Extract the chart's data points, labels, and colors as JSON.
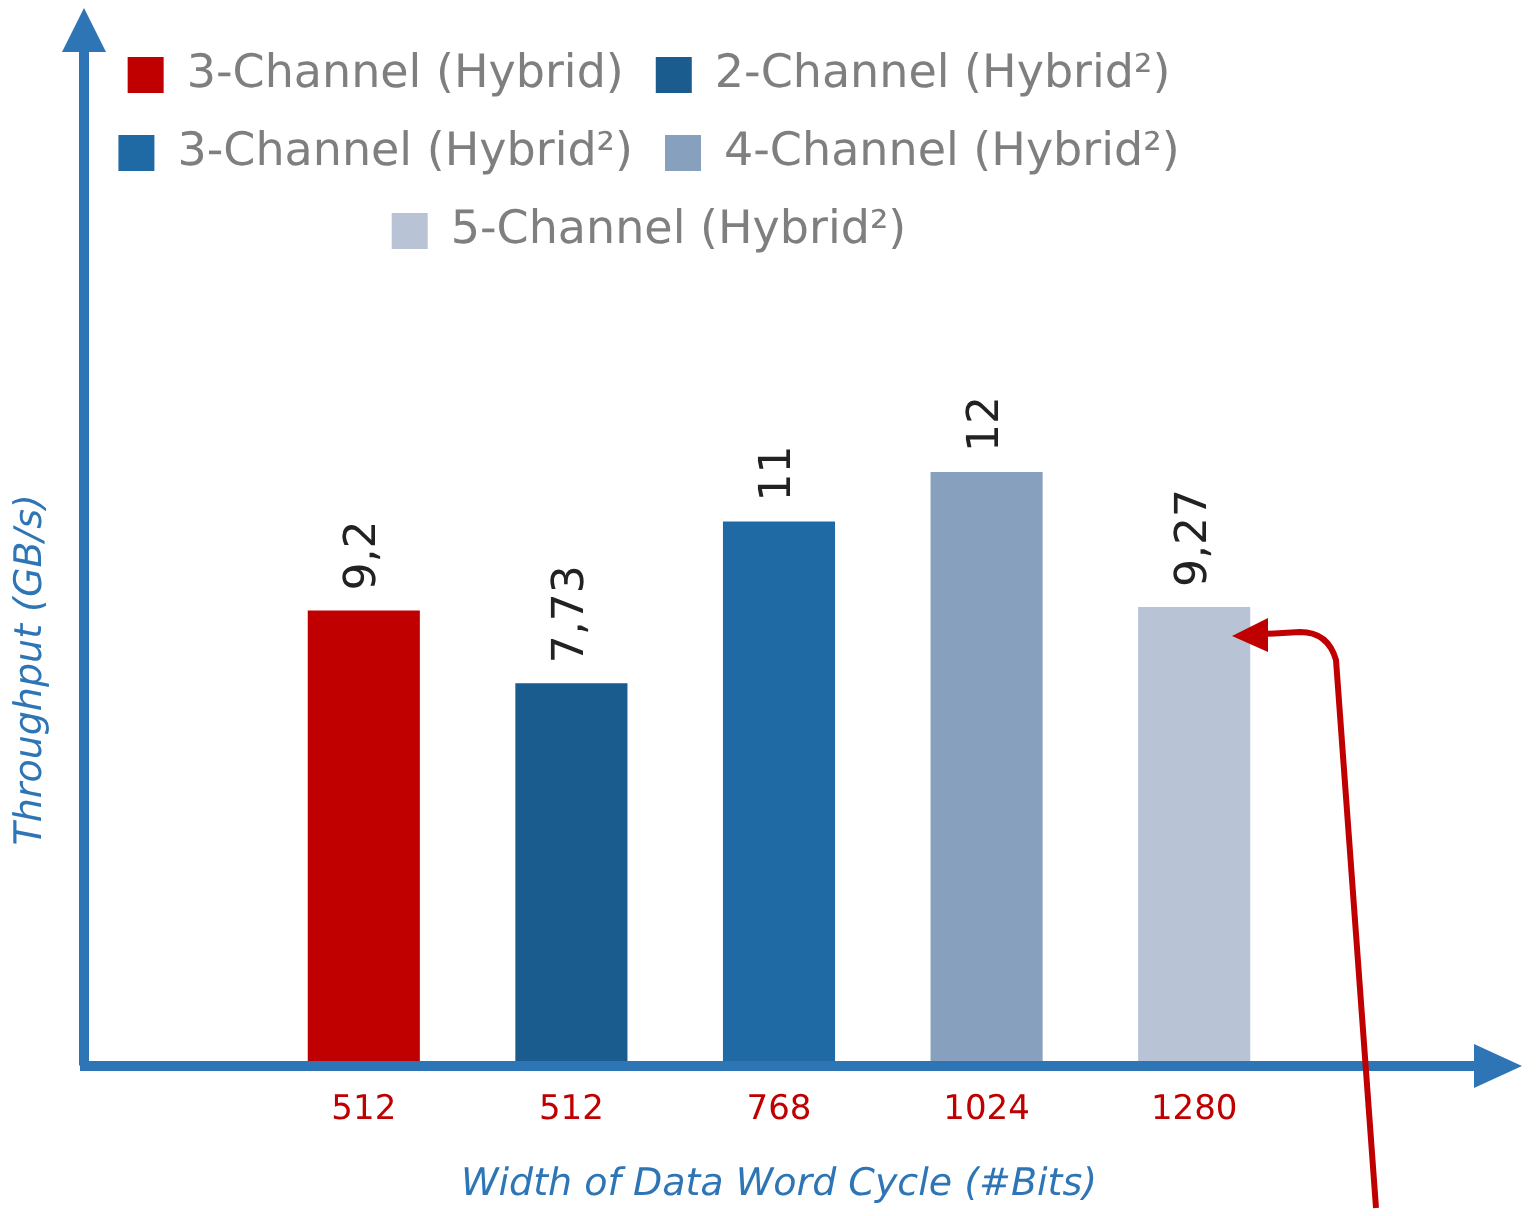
{
  "chart_data": {
    "type": "bar",
    "xlabel": "Width of Data Word Cycle (#Bits)",
    "ylabel": "Throughput (GB/s)",
    "categories": [
      "512",
      "512",
      "768",
      "1024",
      "1280"
    ],
    "series": [
      {
        "name": "3-Channel (Hybrid)",
        "color": "#c00000",
        "values": [
          9.2,
          null,
          null,
          null,
          null
        ],
        "value_labels": [
          "9,2",
          null,
          null,
          null,
          null
        ]
      },
      {
        "name": "2-Channel (Hybrid²)",
        "color": "#1a5c8e",
        "values": [
          null,
          7.73,
          null,
          null,
          null
        ],
        "value_labels": [
          null,
          "7,73",
          null,
          null,
          null
        ]
      },
      {
        "name": "3-Channel (Hybrid²)",
        "color": "#1f6aa5",
        "values": [
          null,
          null,
          11,
          null,
          null
        ],
        "value_labels": [
          null,
          null,
          "11",
          null,
          null
        ]
      },
      {
        "name": "4-Channel (Hybrid²)",
        "color": "#87a0be",
        "values": [
          null,
          null,
          null,
          12,
          null
        ],
        "value_labels": [
          null,
          null,
          null,
          "12",
          null
        ]
      },
      {
        "name": "5-Channel (Hybrid²)",
        "color": "#b8c4d6",
        "values": [
          null,
          null,
          null,
          null,
          9.27
        ],
        "value_labels": [
          null,
          null,
          null,
          null,
          "9,27"
        ]
      }
    ],
    "grid": false,
    "legend": "top"
  }
}
